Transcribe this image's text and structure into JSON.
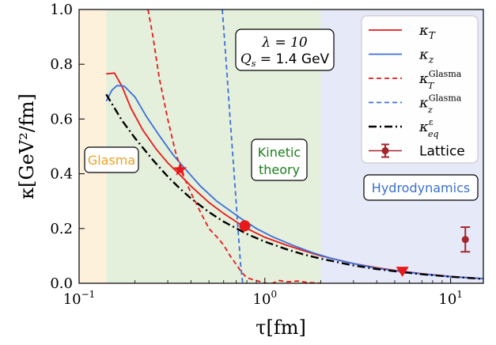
{
  "chart_data": {
    "type": "line",
    "xscale": "log",
    "xlim": [
      0.1,
      15
    ],
    "ylim": [
      0,
      1.0
    ],
    "xlabel": "τ[fm]",
    "ylabel": "κ[GeV²/fm]",
    "xticks": [
      {
        "value": 0.1,
        "label": "10"
      },
      {
        "value": 1,
        "label": "10"
      },
      {
        "value": 10,
        "label": "10"
      }
    ],
    "xtick_exponents": [
      "−1",
      "0",
      "1"
    ],
    "yticks": [
      "0.0",
      "0.2",
      "0.4",
      "0.6",
      "0.8",
      "1.0"
    ],
    "ytick_values": [
      0.0,
      0.2,
      0.4,
      0.6,
      0.8,
      1.0
    ],
    "regions": [
      {
        "label": "Glasma",
        "from": 0.1,
        "to": 0.14,
        "color": "#fdf1dc",
        "label_color": "#f0a020"
      },
      {
        "label": "Kinetic theory",
        "from": 0.14,
        "to": 2.0,
        "color": "#e4efdc",
        "label_color": "#1a7f1a"
      },
      {
        "label": "Hydrodynamics",
        "from": 2.0,
        "to": 15,
        "color": "#e5e9f8",
        "label_color": "#3a6fd0"
      }
    ],
    "kinetic_label_lines": [
      "Kinetic",
      "theory"
    ],
    "annotation": {
      "line1": "λ = 10",
      "line2": "Q",
      "line2_sub": "s",
      "line2_rest": " = 1.4 GeV"
    },
    "series": [
      {
        "name": "κ_T",
        "label_main": "κ",
        "label_sub": "T",
        "label_sup": "",
        "color": "#e8191a",
        "dash": "solid",
        "x": [
          0.14,
          0.155,
          0.17,
          0.19,
          0.22,
          0.26,
          0.3,
          0.35,
          0.4,
          0.5,
          0.6,
          0.7,
          0.8,
          1.0,
          1.3,
          1.6,
          2.0,
          3.0,
          4.0,
          5.0,
          7.0,
          10.0,
          15.0
        ],
        "y": [
          0.765,
          0.768,
          0.72,
          0.64,
          0.56,
          0.49,
          0.44,
          0.395,
          0.355,
          0.295,
          0.255,
          0.225,
          0.2,
          0.168,
          0.14,
          0.12,
          0.1,
          0.072,
          0.057,
          0.047,
          0.035,
          0.025,
          0.017
        ]
      },
      {
        "name": "κ_z",
        "label_main": "κ",
        "label_sub": "z",
        "label_sup": "",
        "color": "#3c6fd8",
        "dash": "solid",
        "x": [
          0.14,
          0.15,
          0.16,
          0.175,
          0.2,
          0.23,
          0.27,
          0.32,
          0.37,
          0.45,
          0.55,
          0.65,
          0.75,
          0.9,
          1.1,
          1.4,
          1.8,
          2.3,
          3.0,
          4.0,
          5.0,
          7.0,
          10.0,
          15.0
        ],
        "y": [
          0.665,
          0.705,
          0.722,
          0.72,
          0.68,
          0.61,
          0.54,
          0.47,
          0.42,
          0.355,
          0.3,
          0.265,
          0.235,
          0.2,
          0.17,
          0.14,
          0.112,
          0.09,
          0.072,
          0.055,
          0.046,
          0.034,
          0.024,
          0.017
        ]
      },
      {
        "name": "κ_T^Glasma",
        "label_main": "κ",
        "label_sub": "T",
        "label_sup": "Glasma",
        "color": "#e8191a",
        "dash": "dashed",
        "x": [
          0.235,
          0.25,
          0.27,
          0.3,
          0.33,
          0.36,
          0.4,
          0.45,
          0.5,
          0.55,
          0.6,
          0.65,
          0.7,
          0.75,
          0.8,
          0.9,
          1.0,
          1.1,
          1.2,
          1.3,
          1.5,
          1.7,
          2.0
        ],
        "y": [
          1.0,
          0.9,
          0.75,
          0.6,
          0.48,
          0.4,
          0.33,
          0.26,
          0.2,
          0.17,
          0.14,
          0.1,
          0.07,
          0.04,
          0.02,
          0.01,
          0.0,
          0.0,
          0.01,
          0.005,
          0.008,
          0.003,
          0.0
        ]
      },
      {
        "name": "κ_z^Glasma",
        "label_main": "κ",
        "label_sub": "z",
        "label_sup": "Glasma",
        "color": "#3c6fd8",
        "dash": "dashed",
        "x": [
          0.59,
          0.62,
          0.65,
          0.68,
          0.7,
          0.72,
          0.74,
          0.76
        ],
        "y": [
          1.0,
          0.8,
          0.6,
          0.42,
          0.3,
          0.18,
          0.07,
          0.0
        ]
      },
      {
        "name": "κ_eq^ε",
        "label_main": "κ",
        "label_sub": "eq",
        "label_sup": "ε",
        "color": "#000000",
        "dash": "dashdot",
        "x": [
          0.14,
          0.17,
          0.2,
          0.25,
          0.3,
          0.35,
          0.4,
          0.5,
          0.6,
          0.8,
          1.0,
          1.3,
          1.6,
          2.0,
          3.0,
          4.0,
          5.0,
          7.0,
          10.0,
          15.0
        ],
        "y": [
          0.69,
          0.595,
          0.53,
          0.45,
          0.39,
          0.345,
          0.31,
          0.26,
          0.225,
          0.18,
          0.152,
          0.125,
          0.106,
          0.09,
          0.065,
          0.052,
          0.044,
          0.033,
          0.024,
          0.016
        ]
      }
    ],
    "lattice": {
      "name": "Lattice",
      "color": "#a5252c",
      "x": 12.0,
      "y": 0.16,
      "err_low": 0.115,
      "err_high": 0.205
    },
    "markers": [
      {
        "shape": "star",
        "x": 0.35,
        "y": 0.415,
        "color": "#e8191a"
      },
      {
        "shape": "circle",
        "x": 0.78,
        "y": 0.21,
        "color": "#e8191a"
      },
      {
        "shape": "triangle-down",
        "x": 5.5,
        "y": 0.042,
        "color": "#e8191a"
      }
    ],
    "legend": {
      "position": "top-right"
    }
  }
}
